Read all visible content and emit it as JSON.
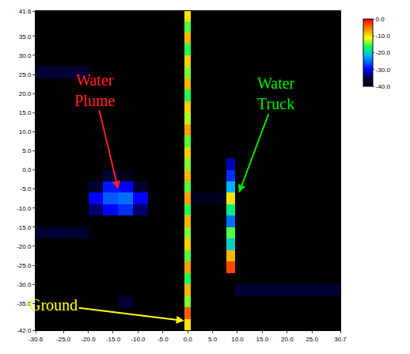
{
  "chart_data": {
    "type": "heatmap",
    "x_edges": [
      -30.6,
      -20,
      -17,
      -14,
      -11,
      -8,
      -0.6,
      0.6,
      7.8,
      9.6,
      30.7
    ],
    "y_edges": [
      -42,
      -39,
      -36,
      -33,
      -30,
      -27,
      -24,
      -21,
      -18,
      -15,
      -12,
      -9,
      -6,
      -3,
      0,
      3,
      6,
      9,
      12,
      15,
      18,
      21,
      24,
      27,
      30,
      33,
      36,
      39,
      41.6
    ],
    "cells": [
      [
        -40,
        -40,
        -40,
        -40,
        -40,
        -40,
        -10,
        -40,
        -40,
        -40
      ],
      [
        -40,
        -40,
        -40,
        -40,
        -40,
        -40,
        -4,
        -40,
        -40,
        -40
      ],
      [
        -40,
        -40,
        -40,
        -36,
        -40,
        -40,
        -14,
        -40,
        -40,
        -40
      ],
      [
        -40,
        -40,
        -40,
        -40,
        -40,
        -40,
        -8,
        -40,
        -40,
        -36
      ],
      [
        -40,
        -40,
        -40,
        -40,
        -40,
        -40,
        -16,
        -40,
        -40,
        -40
      ],
      [
        -40,
        -40,
        -40,
        -40,
        -40,
        -40,
        -7,
        -40,
        -3,
        -40
      ],
      [
        -40,
        -40,
        -40,
        -40,
        -40,
        -40,
        -15,
        -40,
        -8,
        -40
      ],
      [
        -40,
        -40,
        -40,
        -40,
        -40,
        -40,
        -9,
        -40,
        -20,
        -40
      ],
      [
        -36,
        -40,
        -40,
        -40,
        -40,
        -40,
        -14,
        -40,
        -15,
        -40
      ],
      [
        -40,
        -40,
        -40,
        -40,
        -40,
        -40,
        -8,
        -40,
        -25,
        -40
      ],
      [
        -40,
        -34,
        -30,
        -28,
        -34,
        -40,
        -16,
        -40,
        -18,
        -40
      ],
      [
        -40,
        -30,
        -26,
        -25,
        -30,
        -40,
        -7,
        -38,
        -10,
        -40
      ],
      [
        -40,
        -36,
        -29,
        -30,
        -36,
        -40,
        -15,
        -40,
        -22,
        -40
      ],
      [
        -40,
        -40,
        -36,
        -38,
        -40,
        -40,
        -8,
        -40,
        -28,
        -40
      ],
      [
        -40,
        -40,
        -40,
        -40,
        -40,
        -40,
        -14,
        -40,
        -32,
        -40
      ],
      [
        -40,
        -40,
        -40,
        -40,
        -40,
        -40,
        -9,
        -40,
        -40,
        -40
      ],
      [
        -40,
        -40,
        -40,
        -40,
        -40,
        -40,
        -15,
        -40,
        -40,
        -40
      ],
      [
        -40,
        -40,
        -40,
        -40,
        -40,
        -40,
        -7,
        -40,
        -40,
        -40
      ],
      [
        -40,
        -40,
        -40,
        -40,
        -40,
        -40,
        -13,
        -40,
        -40,
        -40
      ],
      [
        -40,
        -40,
        -40,
        -40,
        -40,
        -40,
        -9,
        -40,
        -40,
        -40
      ],
      [
        -40,
        -40,
        -40,
        -40,
        -40,
        -40,
        -16,
        -40,
        -40,
        -40
      ],
      [
        -40,
        -40,
        -40,
        -40,
        -40,
        -40,
        -8,
        -40,
        -40,
        -40
      ],
      [
        -36,
        -40,
        -40,
        -40,
        -40,
        -40,
        -14,
        -40,
        -40,
        -40
      ],
      [
        -40,
        -40,
        -40,
        -40,
        -40,
        -40,
        -9,
        -40,
        -40,
        -40
      ],
      [
        -40,
        -40,
        -40,
        -40,
        -40,
        -40,
        -16,
        -40,
        -40,
        -40
      ],
      [
        -40,
        -40,
        -40,
        -40,
        -40,
        -40,
        -8,
        -40,
        -40,
        -40
      ],
      [
        -40,
        -40,
        -40,
        -40,
        -40,
        -40,
        -15,
        -40,
        -40,
        -40
      ],
      [
        -40,
        -40,
        -40,
        -40,
        -40,
        -40,
        -10,
        -40,
        -40,
        -40
      ]
    ],
    "xlim": [
      -30.6,
      30.7
    ],
    "xticks": [
      {
        "value": -30.6,
        "label": "-30.6"
      },
      {
        "value": -25,
        "label": "-25.0"
      },
      {
        "value": -20,
        "label": "-20.0"
      },
      {
        "value": -15,
        "label": "-15.0"
      },
      {
        "value": -10,
        "label": "-10.0"
      },
      {
        "value": -5,
        "label": "-5.0"
      },
      {
        "value": 0,
        "label": "0.0"
      },
      {
        "value": 5,
        "label": "5.0"
      },
      {
        "value": 10,
        "label": "10.0"
      },
      {
        "value": 15,
        "label": "15.0"
      },
      {
        "value": 20,
        "label": "20.0"
      },
      {
        "value": 25,
        "label": "25.0"
      },
      {
        "value": 30.7,
        "label": "30.7"
      }
    ],
    "ylim": [
      -42,
      41.6
    ],
    "yticks": [
      {
        "value": -42,
        "label": "-42.0"
      },
      {
        "value": -35,
        "label": "-35.0"
      },
      {
        "value": -30,
        "label": "-30.0"
      },
      {
        "value": -25,
        "label": "-25.0"
      },
      {
        "value": -20,
        "label": "-20.0"
      },
      {
        "value": -15,
        "label": "-15.0"
      },
      {
        "value": -10,
        "label": "-10.0"
      },
      {
        "value": -5,
        "label": "-5.0"
      },
      {
        "value": 0,
        "label": "0.0"
      },
      {
        "value": 5,
        "label": "5.0"
      },
      {
        "value": 10,
        "label": "10.0"
      },
      {
        "value": 15,
        "label": "15.0"
      },
      {
        "value": 20,
        "label": "20.0"
      },
      {
        "value": 25,
        "label": "25.0"
      },
      {
        "value": 30,
        "label": "30.0"
      },
      {
        "value": 35,
        "label": "35.0"
      },
      {
        "value": 41.6,
        "label": "41.6"
      }
    ],
    "colorbar_range": [
      -40,
      0
    ],
    "colorbar_ticks": [
      {
        "value": 0,
        "label": "0.0"
      },
      {
        "value": -10,
        "label": "-10.0"
      },
      {
        "value": -20,
        "label": "-20.0"
      },
      {
        "value": -30,
        "label": "-30.0"
      },
      {
        "value": -40,
        "label": "-40.0"
      }
    ],
    "grid": false,
    "annotations": [
      {
        "text": "Water Plume",
        "x": -14,
        "y": -5,
        "color": "#ff2020"
      },
      {
        "text": "Water Truck",
        "x": 10.3,
        "y": -6,
        "color": "#00e000"
      },
      {
        "text": "Ground",
        "x": -0.7,
        "y": -39.5,
        "color": "#ffff00"
      }
    ]
  }
}
